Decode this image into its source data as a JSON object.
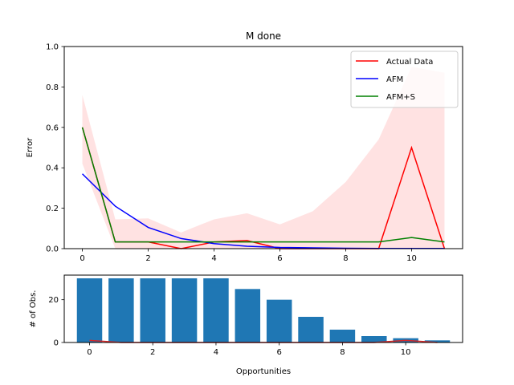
{
  "chart_data": [
    {
      "type": "line",
      "title": "M  done",
      "xlabel": "",
      "ylabel": "Error",
      "xlim": [
        -0.55,
        11.55
      ],
      "ylim": [
        0,
        1.0
      ],
      "xticks": [
        "0",
        "2",
        "4",
        "6",
        "8",
        "10"
      ],
      "yticks": [
        "0.0",
        "0.2",
        "0.4",
        "0.6",
        "0.8",
        "1.0"
      ],
      "legend_position": "top-right",
      "x": [
        0,
        1,
        2,
        3,
        4,
        5,
        6,
        7,
        8,
        9,
        10,
        11
      ],
      "band": {
        "color": "#ffdddd",
        "lower": [
          0.42,
          0.0,
          0.0,
          0.0,
          0.0,
          0.0,
          0.0,
          0.0,
          0.0,
          0.0,
          0.0,
          0.0
        ],
        "upper": [
          0.76,
          0.145,
          0.15,
          0.08,
          0.145,
          0.175,
          0.12,
          0.185,
          0.33,
          0.54,
          0.9,
          0.87
        ]
      },
      "series": [
        {
          "name": "Actual Data",
          "color": "#ff0000",
          "values": [
            0.6,
            0.033,
            0.033,
            0.0,
            0.033,
            0.04,
            0.0,
            0.0,
            0.0,
            0.0,
            0.5,
            0.0
          ]
        },
        {
          "name": "AFM",
          "color": "#0000ff",
          "values": [
            0.37,
            0.21,
            0.105,
            0.05,
            0.025,
            0.012,
            0.006,
            0.004,
            0.002,
            0.001,
            0.001,
            0.001
          ]
        },
        {
          "name": "AFM+S",
          "color": "#008000",
          "values": [
            0.6,
            0.033,
            0.033,
            0.033,
            0.033,
            0.033,
            0.033,
            0.033,
            0.033,
            0.033,
            0.055,
            0.033
          ]
        }
      ]
    },
    {
      "type": "bar",
      "xlabel": "Opportunities",
      "ylabel": "# of Obs.",
      "xlim": [
        -0.8,
        11.8
      ],
      "ylim": [
        0,
        31.5
      ],
      "xticks": [
        "0",
        "2",
        "4",
        "6",
        "8",
        "10"
      ],
      "yticks": [
        "0",
        "20"
      ],
      "bar_color": "#1f77b4",
      "overlay_color": "#d62728",
      "categories": [
        0,
        1,
        2,
        3,
        4,
        5,
        6,
        7,
        8,
        9,
        10,
        11
      ],
      "values": [
        30,
        30,
        30,
        30,
        30,
        25,
        20,
        12,
        6,
        3,
        2,
        1
      ],
      "overlay_values": [
        1,
        0,
        0,
        0,
        0,
        0,
        0,
        0,
        0,
        0,
        1,
        0
      ]
    }
  ]
}
